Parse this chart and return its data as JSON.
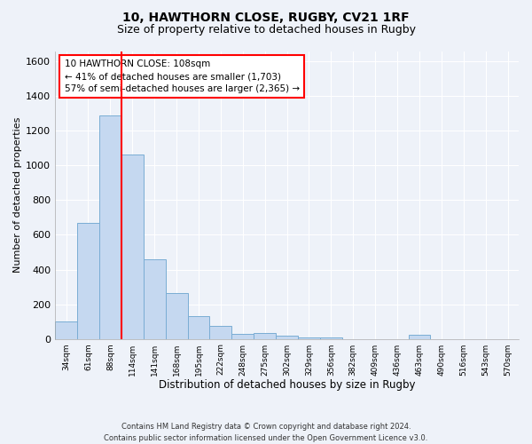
{
  "title1": "10, HAWTHORN CLOSE, RUGBY, CV21 1RF",
  "title2": "Size of property relative to detached houses in Rugby",
  "xlabel": "Distribution of detached houses by size in Rugby",
  "ylabel": "Number of detached properties",
  "bar_color": "#c5d8f0",
  "bar_edge_color": "#7aadd4",
  "categories": [
    "34sqm",
    "61sqm",
    "88sqm",
    "114sqm",
    "141sqm",
    "168sqm",
    "195sqm",
    "222sqm",
    "248sqm",
    "275sqm",
    "302sqm",
    "329sqm",
    "356sqm",
    "382sqm",
    "409sqm",
    "436sqm",
    "463sqm",
    "490sqm",
    "516sqm",
    "543sqm",
    "570sqm"
  ],
  "values": [
    100,
    670,
    1290,
    1065,
    460,
    265,
    130,
    75,
    30,
    35,
    20,
    10,
    10,
    0,
    0,
    0,
    25,
    0,
    0,
    0,
    0
  ],
  "property_sqm": 108,
  "annotation_text": "10 HAWTHORN CLOSE: 108sqm\n← 41% of detached houses are smaller (1,703)\n57% of semi-detached houses are larger (2,365) →",
  "ylim": [
    0,
    1660
  ],
  "yticks": [
    0,
    200,
    400,
    600,
    800,
    1000,
    1200,
    1400,
    1600
  ],
  "footnote": "Contains HM Land Registry data © Crown copyright and database right 2024.\nContains public sector information licensed under the Open Government Licence v3.0.",
  "bg_color": "#eef2f9",
  "grid_color": "#ffffff",
  "title1_fontsize": 10,
  "title2_fontsize": 9,
  "xlabel_fontsize": 8.5,
  "ylabel_fontsize": 8
}
